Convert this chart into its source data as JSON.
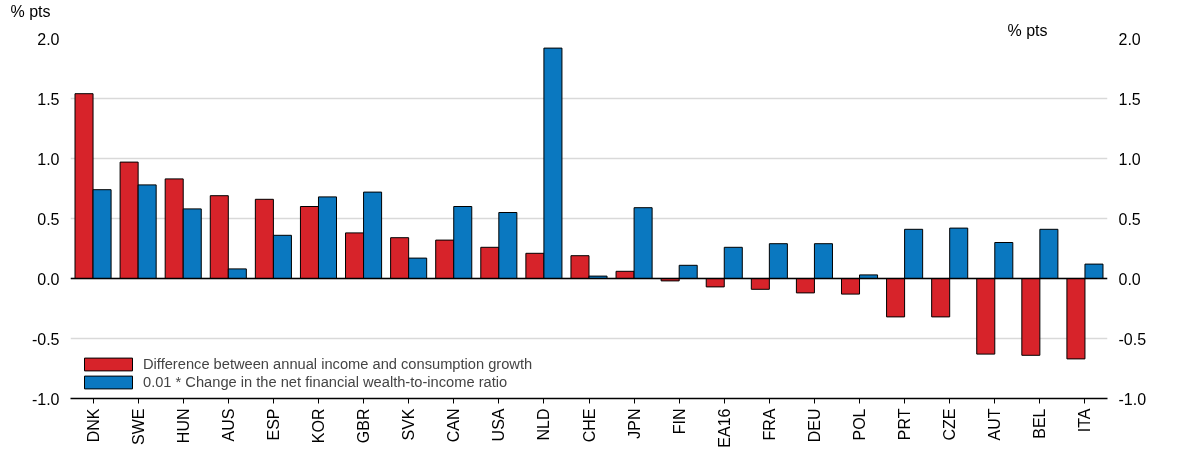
{
  "chart_data": {
    "type": "bar",
    "ylabel": "% pts",
    "y2label": "% pts",
    "categories": [
      "DNK",
      "SWE",
      "HUN",
      "AUS",
      "ESP",
      "KOR",
      "GBR",
      "SVK",
      "CAN",
      "USA",
      "NLD",
      "CHE",
      "JPN",
      "FIN",
      "EA16",
      "FRA",
      "DEU",
      "POL",
      "PRT",
      "CZE",
      "AUT",
      "BEL",
      "ITA"
    ],
    "series": [
      {
        "name": "Difference between annual income and consumption growth",
        "color": "#d7232a",
        "values": [
          1.54,
          0.97,
          0.83,
          0.69,
          0.66,
          0.6,
          0.38,
          0.34,
          0.32,
          0.26,
          0.21,
          0.19,
          0.06,
          -0.02,
          -0.07,
          -0.09,
          -0.12,
          -0.13,
          -0.32,
          -0.32,
          -0.63,
          -0.64,
          -0.67
        ]
      },
      {
        "name": "0.01 * Change in the net financial wealth-to-income ratio",
        "color": "#0a78c0",
        "values": [
          0.74,
          0.78,
          0.58,
          0.08,
          0.36,
          0.68,
          0.72,
          0.17,
          0.6,
          0.55,
          1.92,
          0.02,
          0.59,
          0.11,
          0.26,
          0.29,
          0.29,
          0.03,
          0.41,
          0.42,
          0.3,
          0.41,
          0.12
        ]
      }
    ],
    "ylim": [
      -1.0,
      2.0
    ],
    "yticks": [
      {
        "value": -1,
        "label": "-1.0"
      },
      {
        "value": -0.5,
        "label": "-0.5"
      },
      {
        "value": 0,
        "label": "0.0"
      },
      {
        "value": 0.5,
        "label": "0.5"
      },
      {
        "value": 1,
        "label": "1.0"
      },
      {
        "value": 1.5,
        "label": "1.5"
      },
      {
        "value": 2,
        "label": "2.0"
      }
    ],
    "y2lim": [
      -1.0,
      2.0
    ],
    "y2ticks": [
      {
        "value": -1,
        "label": "-1.0"
      },
      {
        "value": -0.5,
        "label": "-0.5"
      },
      {
        "value": 0,
        "label": "0.0"
      },
      {
        "value": 0.5,
        "label": "0.5"
      },
      {
        "value": 1,
        "label": "1.0"
      },
      {
        "value": 1.5,
        "label": "1.5"
      },
      {
        "value": 2,
        "label": "2.0"
      }
    ],
    "ref_lines": [
      {
        "axis": "y",
        "value": 0,
        "color": "#000000"
      }
    ],
    "grid": "y",
    "legend": "bottom left"
  }
}
